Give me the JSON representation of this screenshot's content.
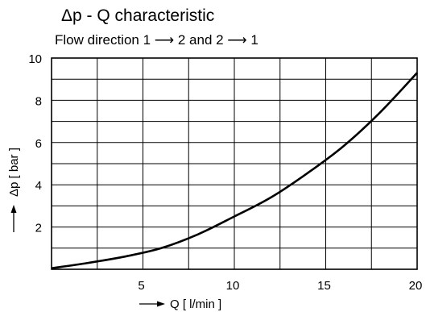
{
  "chart_data": {
    "type": "line",
    "title": "Δp - Q characteristic",
    "subtitle": "Flow direction 1 ⟶ 2 and 2 ⟶ 1",
    "xlabel": "Q [ l/min ]",
    "ylabel": "Δp [ bar ]",
    "xlim": [
      0,
      20
    ],
    "ylim": [
      0,
      10
    ],
    "xticks": [
      5,
      10,
      15,
      20
    ],
    "yticks": [
      2,
      4,
      6,
      8,
      10
    ],
    "grid": true,
    "series": [
      {
        "x": [
          0,
          2,
          4,
          6,
          8,
          10,
          12,
          14,
          16,
          18,
          20
        ],
        "values": [
          0.05,
          0.3,
          0.6,
          1.0,
          1.65,
          2.5,
          3.4,
          4.55,
          5.85,
          7.45,
          9.3
        ]
      }
    ]
  }
}
